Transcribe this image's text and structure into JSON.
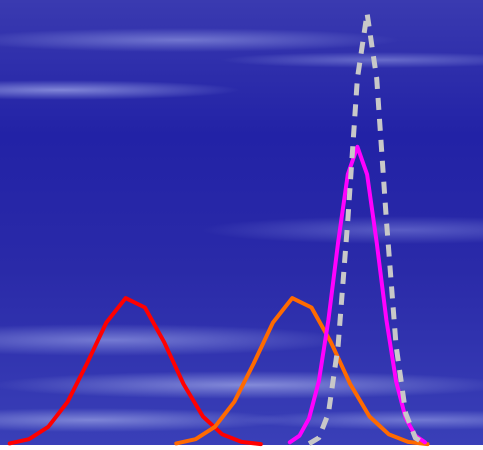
{
  "chart_data": {
    "type": "line",
    "xlim": [
      0,
      100
    ],
    "ylim": [
      0,
      100
    ],
    "series": [
      {
        "color": "#ff0000",
        "dashed": false,
        "x": [
          2,
          6,
          10,
          14,
          18,
          22,
          26,
          30,
          34,
          38,
          42,
          46,
          50,
          54
        ],
        "values": [
          0.35,
          1.3,
          4.1,
          9.7,
          18.3,
          27.5,
          33,
          30.9,
          23.1,
          13.7,
          6.4,
          2.4,
          0.7,
          0.2
        ]
      },
      {
        "color": "#ff6a00",
        "dashed": false,
        "x": [
          36.5,
          40.5,
          44.5,
          48.5,
          52.5,
          56.5,
          60.5,
          64.5,
          68.5,
          72.5,
          76.5,
          80.5,
          84.5,
          88.5
        ],
        "values": [
          0.35,
          1.3,
          4.1,
          9.7,
          18.3,
          27.5,
          33,
          30.9,
          23.1,
          13.7,
          6.4,
          2.4,
          0.7,
          0.2
        ]
      },
      {
        "color": "#ff00ff",
        "dashed": false,
        "x": [
          60,
          62,
          64,
          66,
          68,
          70,
          72,
          74,
          76,
          78,
          80,
          82,
          84,
          86,
          88
        ],
        "values": [
          0.6,
          2.1,
          6.0,
          14.3,
          28.1,
          45.5,
          60.8,
          67,
          60.8,
          45.5,
          28.1,
          14.3,
          6.0,
          2.1,
          0.6
        ]
      },
      {
        "color": "#c8c8c8",
        "dashed": true,
        "x": [
          64,
          66,
          68,
          70,
          72,
          74,
          76,
          78,
          80,
          82,
          84,
          86,
          88
        ],
        "values": [
          0.3,
          1.6,
          7.1,
          22.3,
          50.5,
          82.4,
          97,
          82.4,
          50.5,
          22.3,
          7.1,
          1.6,
          0.3
        ]
      }
    ]
  }
}
